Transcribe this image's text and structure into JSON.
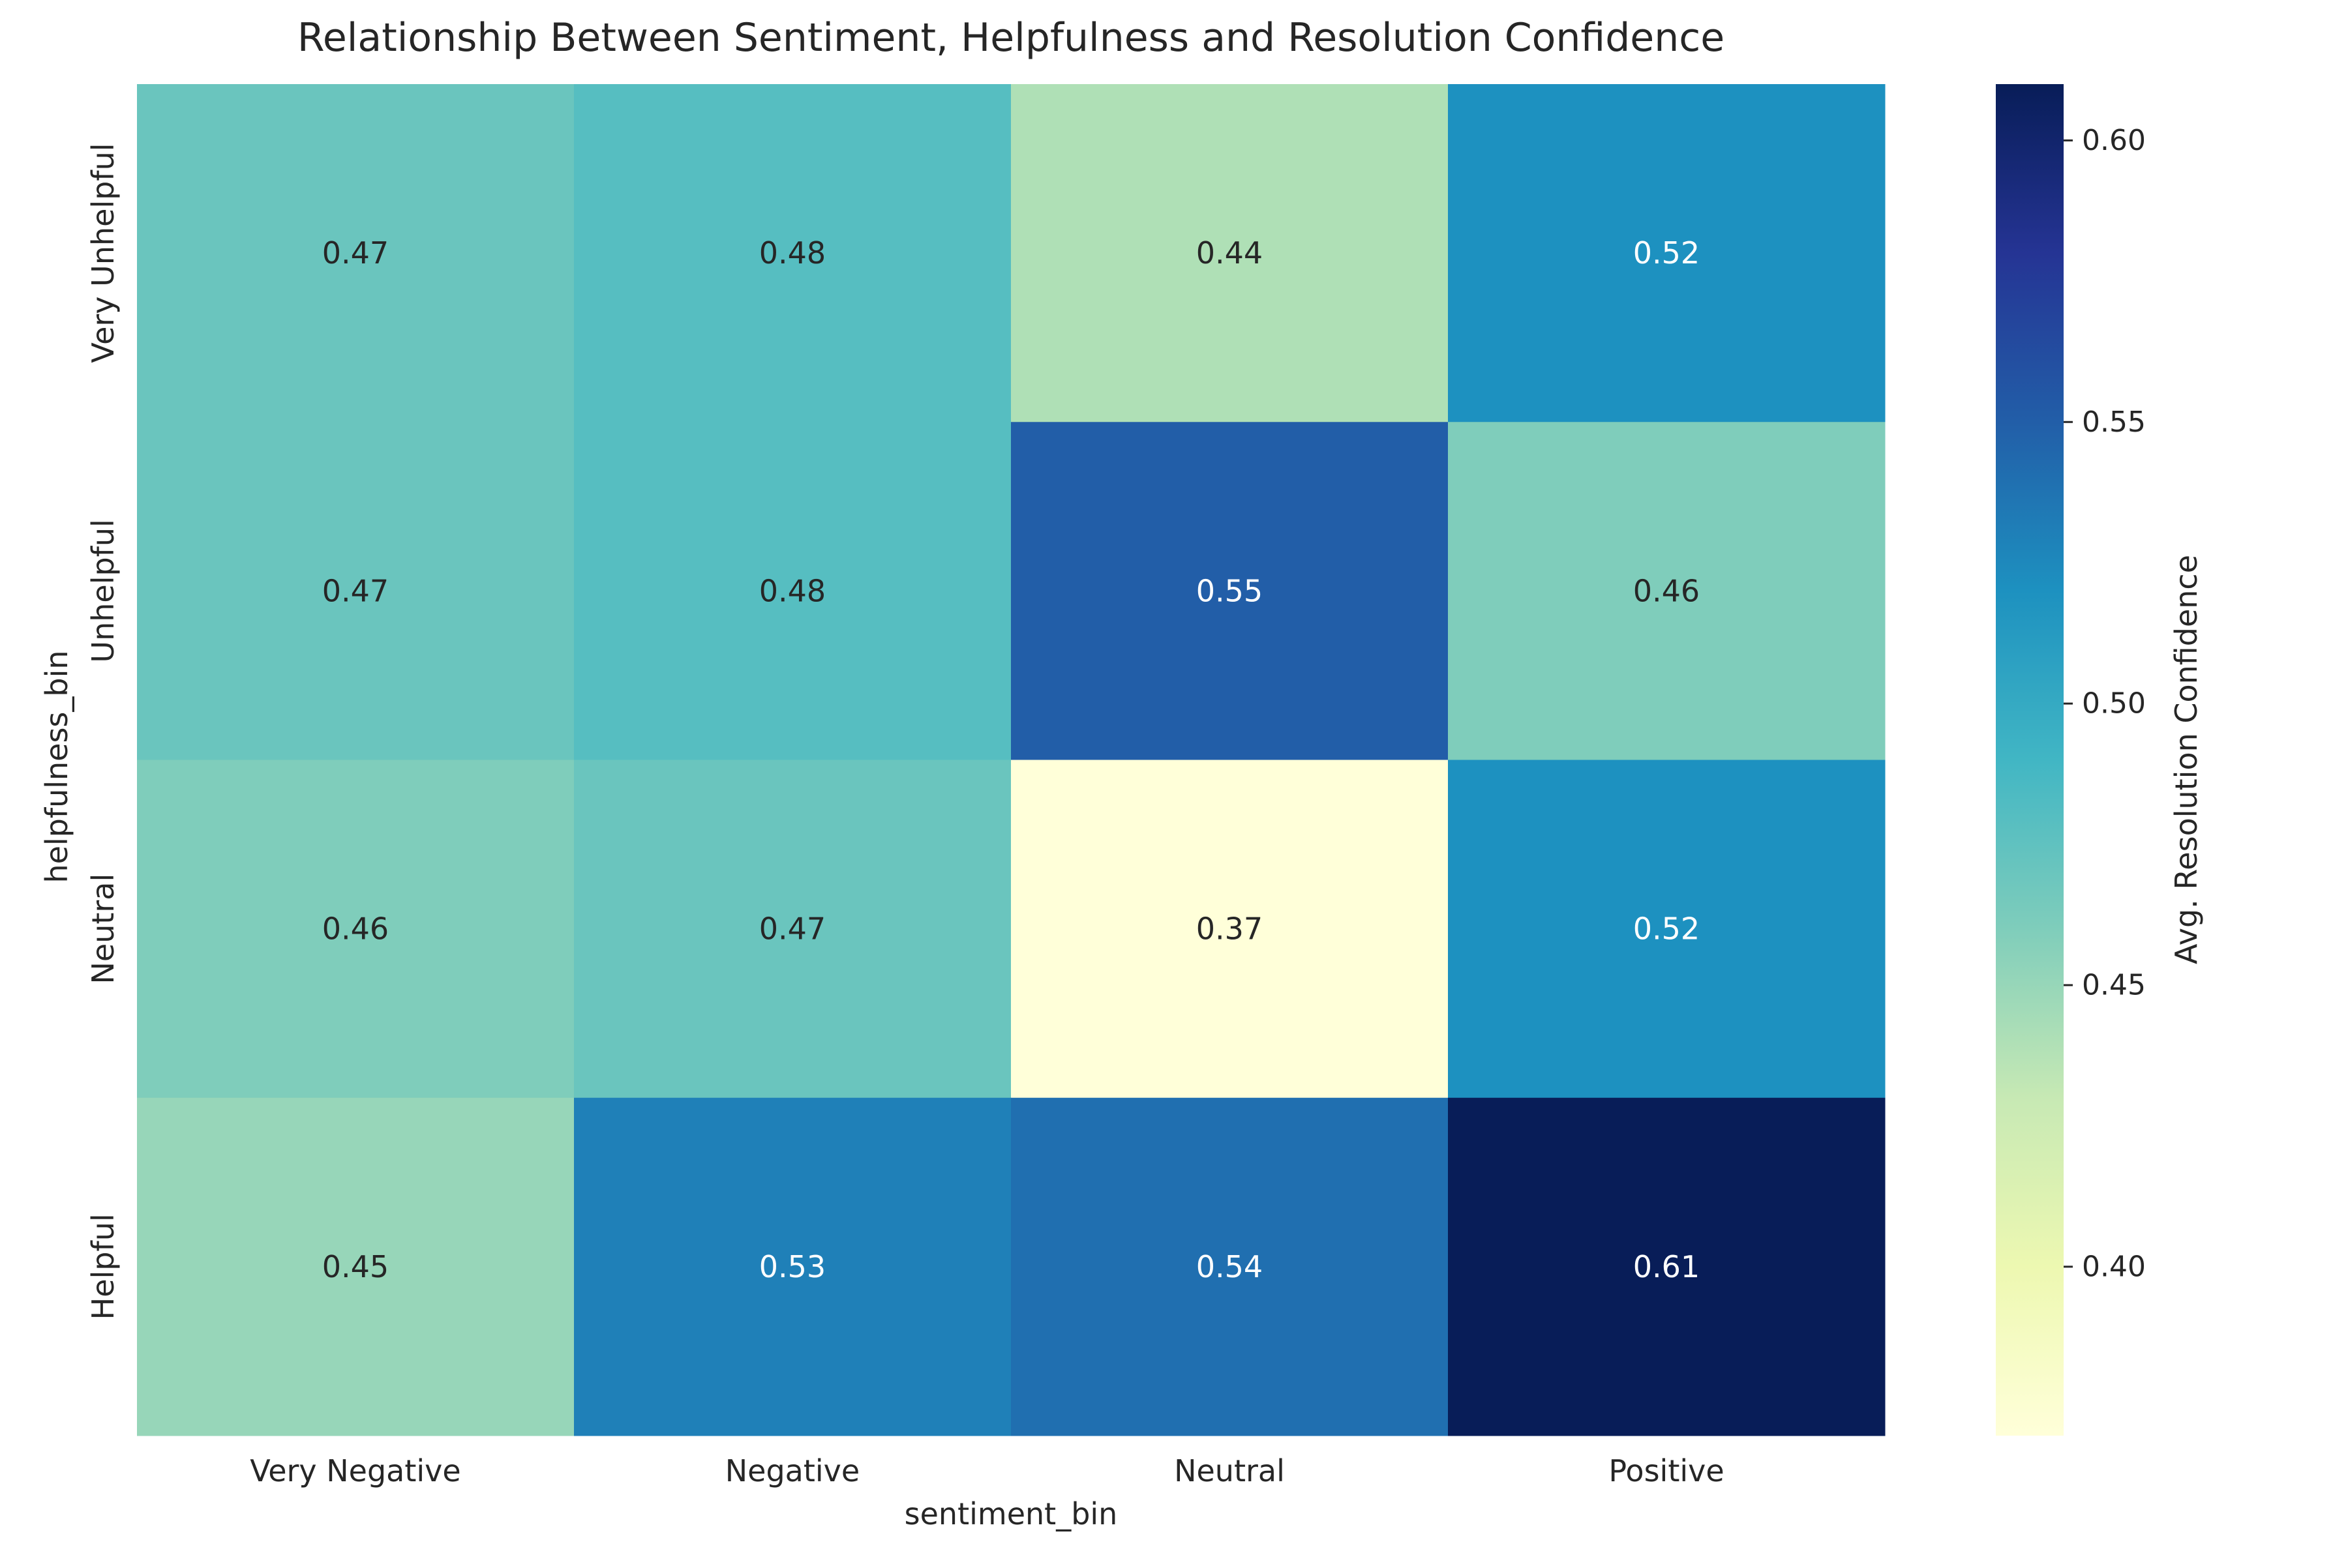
{
  "chart_data": {
    "type": "heatmap",
    "title": "Relationship Between Sentiment, Helpfulness and Resolution Confidence",
    "xlabel": "sentiment_bin",
    "ylabel": "helpfulness_bin",
    "x_categories": [
      "Very Negative",
      "Negative",
      "Neutral",
      "Positive"
    ],
    "y_categories": [
      "Very Unhelpful",
      "Unhelpful",
      "Neutral",
      "Helpful"
    ],
    "values": [
      [
        0.47,
        0.48,
        0.44,
        0.52
      ],
      [
        0.47,
        0.48,
        0.55,
        0.46
      ],
      [
        0.46,
        0.47,
        0.37,
        0.52
      ],
      [
        0.45,
        0.53,
        0.54,
        0.61
      ]
    ],
    "value_labels": [
      [
        "0.47",
        "0.48",
        "0.44",
        "0.52"
      ],
      [
        "0.47",
        "0.48",
        "0.55",
        "0.46"
      ],
      [
        "0.46",
        "0.47",
        "0.37",
        "0.52"
      ],
      [
        "0.45",
        "0.53",
        "0.54",
        "0.61"
      ]
    ],
    "colorbar": {
      "label": "Avg. Resolution Confidence",
      "vmin": 0.37,
      "vmax": 0.61,
      "ticks": [
        0.4,
        0.45,
        0.5,
        0.55,
        0.6
      ],
      "tick_labels": [
        "0.40",
        "0.45",
        "0.50",
        "0.55",
        "0.60"
      ],
      "colormap": "YlGnBu",
      "colors": [
        "#ffffd9",
        "#edf8b1",
        "#c7e9b4",
        "#7fcdbb",
        "#41b6c4",
        "#1d91c0",
        "#225ea8",
        "#253494",
        "#081d58"
      ]
    },
    "grid": false
  }
}
